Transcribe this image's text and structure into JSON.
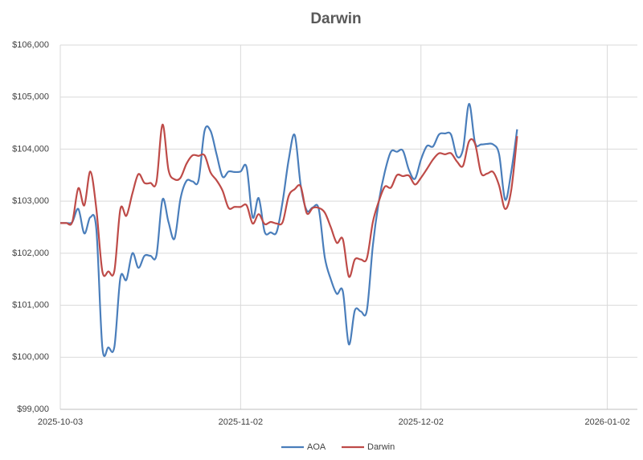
{
  "chart_data": {
    "type": "line",
    "title": "Darwin",
    "x": [
      "2025-10-03",
      "2025-10-04",
      "2025-10-05",
      "2025-10-06",
      "2025-10-07",
      "2025-10-08",
      "2025-10-09",
      "2025-10-10",
      "2025-10-11",
      "2025-10-12",
      "2025-10-13",
      "2025-10-14",
      "2025-10-15",
      "2025-10-16",
      "2025-10-17",
      "2025-10-18",
      "2025-10-19",
      "2025-10-20",
      "2025-10-21",
      "2025-10-22",
      "2025-10-23",
      "2025-10-24",
      "2025-10-25",
      "2025-10-26",
      "2025-10-27",
      "2025-10-28",
      "2025-10-29",
      "2025-10-30",
      "2025-10-31",
      "2025-11-01",
      "2025-11-02",
      "2025-11-03",
      "2025-11-04",
      "2025-11-05",
      "2025-11-06",
      "2025-11-07",
      "2025-11-08",
      "2025-11-09",
      "2025-11-10",
      "2025-11-11",
      "2025-11-12",
      "2025-11-13",
      "2025-11-14",
      "2025-11-15",
      "2025-11-16",
      "2025-11-17",
      "2025-11-18",
      "2025-11-19",
      "2025-11-20",
      "2025-11-21",
      "2025-11-22",
      "2025-11-23",
      "2025-11-24",
      "2025-11-25",
      "2025-11-26",
      "2025-11-27",
      "2025-11-28",
      "2025-11-29",
      "2025-11-30",
      "2025-12-01",
      "2025-12-02",
      "2025-12-03",
      "2025-12-04",
      "2025-12-05",
      "2025-12-06",
      "2025-12-07",
      "2025-12-08",
      "2025-12-09",
      "2025-12-10",
      "2025-12-11",
      "2025-12-12",
      "2025-12-13",
      "2025-12-14",
      "2025-12-15",
      "2025-12-16",
      "2025-12-17",
      "2025-12-18"
    ],
    "series": [
      {
        "name": "AOA",
        "color": "#4a7ebb",
        "values": [
          102580,
          102580,
          102600,
          102850,
          102380,
          102690,
          102460,
          100190,
          100190,
          100200,
          101530,
          101490,
          102000,
          101720,
          101950,
          101950,
          101960,
          103030,
          102600,
          102280,
          103050,
          103390,
          103380,
          103400,
          104350,
          104350,
          103900,
          103470,
          103570,
          103560,
          103570,
          103650,
          102690,
          103060,
          102410,
          102400,
          102410,
          103000,
          103800,
          104270,
          103300,
          102820,
          102880,
          102850,
          101920,
          101500,
          101220,
          101270,
          100250,
          100900,
          100880,
          100900,
          102150,
          103000,
          103570,
          103950,
          103950,
          103970,
          103600,
          103430,
          103800,
          104060,
          104050,
          104280,
          104300,
          104280,
          103860,
          104000,
          104870,
          104120,
          104090,
          104100,
          104090,
          103900,
          103030,
          103550,
          104380
        ]
      },
      {
        "name": "Darwin",
        "color": "#be4b48",
        "values": [
          102580,
          102580,
          102600,
          103250,
          102920,
          103570,
          102850,
          101650,
          101650,
          101660,
          102850,
          102720,
          103150,
          103520,
          103350,
          103350,
          103370,
          104470,
          103600,
          103420,
          103450,
          103720,
          103880,
          103870,
          103880,
          103550,
          103400,
          103200,
          102870,
          102890,
          102890,
          102920,
          102570,
          102750,
          102560,
          102600,
          102570,
          102600,
          103100,
          103230,
          103280,
          102770,
          102870,
          102870,
          102780,
          102500,
          102200,
          102270,
          101550,
          101880,
          101880,
          101900,
          102600,
          103000,
          103280,
          103260,
          103500,
          103480,
          103490,
          103320,
          103450,
          103620,
          103800,
          103920,
          103900,
          103920,
          103760,
          103680,
          104150,
          104100,
          103540,
          103530,
          103560,
          103300,
          102850,
          103200,
          104250
        ]
      }
    ],
    "xlim": [
      "2025-10-03",
      "2026-01-07"
    ],
    "xticks": [
      "2025-10-03",
      "2025-11-02",
      "2025-12-02",
      "2026-01-02"
    ],
    "ylim": [
      99000,
      106000
    ],
    "yticks": [
      {
        "value": 99000,
        "label": "$99,000"
      },
      {
        "value": 100000,
        "label": "$100,000"
      },
      {
        "value": 101000,
        "label": "$101,000"
      },
      {
        "value": 102000,
        "label": "$102,000"
      },
      {
        "value": 103000,
        "label": "$103,000"
      },
      {
        "value": 104000,
        "label": "$104,000"
      },
      {
        "value": 105000,
        "label": "$105,000"
      },
      {
        "value": 106000,
        "label": "$106,000"
      }
    ],
    "grid": true,
    "legend": "bottom"
  }
}
